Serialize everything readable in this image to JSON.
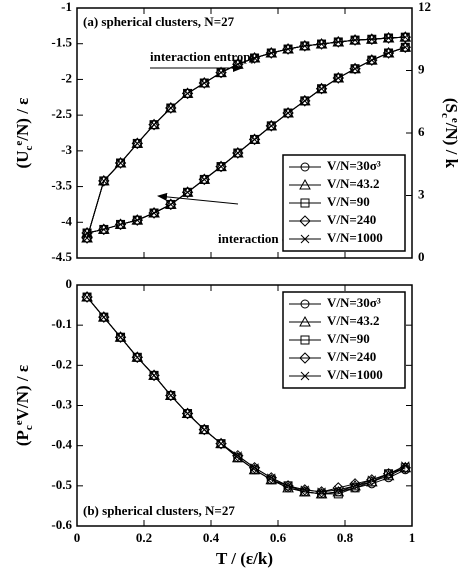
{
  "chart_data": [
    {
      "type": "line",
      "title": "(a) spherical clusters, N=27",
      "ylabel": [
        "(U",
        "c",
        "e",
        "/N) / ε"
      ],
      "y2label": [
        "(S",
        "c",
        "e",
        "/N) / k"
      ],
      "annotations": [
        "interaction entropy",
        "interaction energy"
      ],
      "xlim": [
        0,
        1
      ],
      "xticks": [
        0,
        0.2,
        0.4,
        0.6,
        0.8,
        1
      ],
      "ylim": [
        -4.5,
        -1
      ],
      "yticks": [
        -4.5,
        -4,
        -3.5,
        -3,
        -2.5,
        -2,
        -1.5,
        -1
      ],
      "y2lim": [
        0,
        12
      ],
      "y2ticks": [
        0,
        3,
        6,
        9,
        12
      ],
      "x": [
        0.03,
        0.08,
        0.13,
        0.18,
        0.23,
        0.28,
        0.33,
        0.38,
        0.43,
        0.48,
        0.53,
        0.58,
        0.63,
        0.68,
        0.73,
        0.78,
        0.83,
        0.88,
        0.93,
        0.98
      ],
      "series": [
        {
          "name": "V/N=30σ³",
          "marker": "circle",
          "color": "#000000",
          "values": [
            -4.15,
            -4.1,
            -4.03,
            -3.97,
            -3.87,
            -3.75,
            -3.58,
            -3.4,
            -3.22,
            -3.03,
            -2.84,
            -2.65,
            -2.47,
            -2.3,
            -2.13,
            -1.98,
            -1.85,
            -1.73,
            -1.63,
            -1.55
          ],
          "y2_values": [
            0.96,
            3.7,
            4.56,
            5.5,
            6.4,
            7.2,
            7.9,
            8.4,
            8.9,
            9.3,
            9.6,
            9.84,
            10.03,
            10.18,
            10.27,
            10.37,
            10.46,
            10.5,
            10.56,
            10.6
          ]
        },
        {
          "name": "V/N=43.2",
          "marker": "triangle",
          "color": "#000000",
          "values": [
            -4.15,
            -4.1,
            -4.03,
            -3.97,
            -3.87,
            -3.75,
            -3.58,
            -3.4,
            -3.22,
            -3.03,
            -2.84,
            -2.65,
            -2.47,
            -2.3,
            -2.13,
            -1.98,
            -1.85,
            -1.73,
            -1.63,
            -1.55
          ],
          "y2_values": [
            0.96,
            3.7,
            4.56,
            5.5,
            6.4,
            7.2,
            7.9,
            8.4,
            8.9,
            9.3,
            9.6,
            9.84,
            10.03,
            10.18,
            10.27,
            10.37,
            10.46,
            10.5,
            10.56,
            10.6
          ]
        },
        {
          "name": "V/N=90",
          "marker": "square",
          "color": "#000000",
          "values": [
            -4.15,
            -4.1,
            -4.03,
            -3.97,
            -3.87,
            -3.75,
            -3.58,
            -3.4,
            -3.22,
            -3.03,
            -2.84,
            -2.65,
            -2.47,
            -2.3,
            -2.13,
            -1.98,
            -1.85,
            -1.73,
            -1.63,
            -1.55
          ],
          "y2_values": [
            0.96,
            3.7,
            4.56,
            5.5,
            6.4,
            7.2,
            7.9,
            8.4,
            8.9,
            9.3,
            9.6,
            9.84,
            10.03,
            10.18,
            10.27,
            10.37,
            10.46,
            10.5,
            10.56,
            10.6
          ]
        },
        {
          "name": "V/N=240",
          "marker": "diamond",
          "color": "#000000",
          "values": [
            -4.15,
            -4.1,
            -4.03,
            -3.97,
            -3.87,
            -3.75,
            -3.58,
            -3.4,
            -3.22,
            -3.03,
            -2.84,
            -2.65,
            -2.47,
            -2.3,
            -2.13,
            -1.98,
            -1.85,
            -1.73,
            -1.63,
            -1.55
          ],
          "y2_values": [
            0.96,
            3.7,
            4.56,
            5.5,
            6.4,
            7.2,
            7.9,
            8.4,
            8.9,
            9.3,
            9.6,
            9.84,
            10.03,
            10.18,
            10.27,
            10.37,
            10.46,
            10.5,
            10.56,
            10.6
          ]
        },
        {
          "name": "V/N=1000",
          "marker": "x",
          "color": "#000000",
          "values": [
            -4.15,
            -4.1,
            -4.03,
            -3.97,
            -3.87,
            -3.75,
            -3.58,
            -3.4,
            -3.22,
            -3.03,
            -2.84,
            -2.65,
            -2.47,
            -2.3,
            -2.13,
            -1.98,
            -1.85,
            -1.73,
            -1.63,
            -1.55
          ],
          "y2_values": [
            0.96,
            3.7,
            4.56,
            5.5,
            6.4,
            7.2,
            7.9,
            8.4,
            8.9,
            9.3,
            9.6,
            9.84,
            10.03,
            10.18,
            10.27,
            10.37,
            10.46,
            10.5,
            10.56,
            10.6
          ]
        }
      ]
    },
    {
      "type": "line",
      "title": "(b) spherical clusters, N=27",
      "ylabel": [
        "(P",
        "c",
        "e",
        "V/N) / ε"
      ],
      "xlabel": "T / (ε/k)",
      "xlim": [
        0,
        1
      ],
      "xticks": [
        0,
        0.2,
        0.4,
        0.6,
        0.8,
        1
      ],
      "ylim": [
        -0.6,
        0
      ],
      "yticks": [
        -0.6,
        -0.5,
        -0.4,
        -0.3,
        -0.2,
        -0.1,
        0
      ],
      "x": [
        0.03,
        0.08,
        0.13,
        0.18,
        0.23,
        0.28,
        0.33,
        0.38,
        0.43,
        0.48,
        0.53,
        0.58,
        0.63,
        0.68,
        0.73,
        0.78,
        0.83,
        0.88,
        0.93,
        0.98
      ],
      "series": [
        {
          "name": "V/N=30σ³",
          "marker": "circle",
          "color": "#000000",
          "values": [
            -0.03,
            -0.08,
            -0.13,
            -0.18,
            -0.225,
            -0.275,
            -0.32,
            -0.36,
            -0.395,
            -0.43,
            -0.46,
            -0.485,
            -0.505,
            -0.515,
            -0.52,
            -0.515,
            -0.505,
            -0.495,
            -0.48,
            -0.46
          ]
        },
        {
          "name": "V/N=43.2",
          "marker": "triangle",
          "color": "#000000",
          "values": [
            -0.03,
            -0.08,
            -0.13,
            -0.18,
            -0.225,
            -0.275,
            -0.32,
            -0.36,
            -0.395,
            -0.43,
            -0.46,
            -0.485,
            -0.505,
            -0.515,
            -0.52,
            -0.515,
            -0.5,
            -0.49,
            -0.475,
            -0.455
          ]
        },
        {
          "name": "V/N=90",
          "marker": "square",
          "color": "#000000",
          "values": [
            -0.03,
            -0.08,
            -0.13,
            -0.18,
            -0.225,
            -0.275,
            -0.32,
            -0.36,
            -0.395,
            -0.43,
            -0.46,
            -0.485,
            -0.5,
            -0.515,
            -0.52,
            -0.52,
            -0.505,
            -0.49,
            -0.47,
            -0.455
          ]
        },
        {
          "name": "V/N=240",
          "marker": "diamond",
          "color": "#000000",
          "values": [
            -0.03,
            -0.08,
            -0.13,
            -0.18,
            -0.225,
            -0.275,
            -0.32,
            -0.36,
            -0.395,
            -0.425,
            -0.455,
            -0.48,
            -0.5,
            -0.51,
            -0.515,
            -0.505,
            -0.495,
            -0.485,
            -0.47,
            -0.455
          ]
        },
        {
          "name": "V/N=1000",
          "marker": "x",
          "color": "#000000",
          "values": [
            -0.03,
            -0.08,
            -0.13,
            -0.18,
            -0.225,
            -0.275,
            -0.32,
            -0.36,
            -0.395,
            -0.425,
            -0.455,
            -0.48,
            -0.5,
            -0.51,
            -0.515,
            -0.51,
            -0.5,
            -0.485,
            -0.47,
            -0.45
          ]
        }
      ]
    }
  ]
}
